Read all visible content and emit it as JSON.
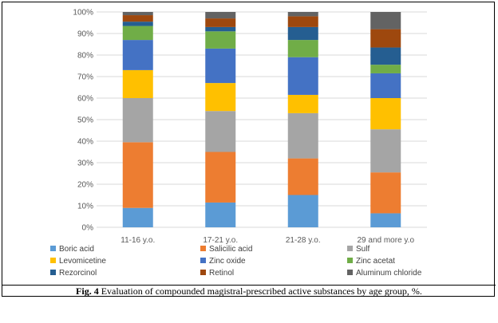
{
  "chart_data": {
    "type": "bar",
    "stacked": true,
    "categories": [
      "11-16 y.o.",
      "17-21 y.o.",
      "21-28 y.o.",
      "29 and more y.o"
    ],
    "ylim": [
      0,
      100
    ],
    "yticks": [
      "0%",
      "10%",
      "20%",
      "30%",
      "40%",
      "50%",
      "60%",
      "70%",
      "80%",
      "90%",
      "100%"
    ],
    "grid": true,
    "legend_position": "bottom",
    "series": [
      {
        "name": "Boric acid",
        "color": "#5B9BD5",
        "values": [
          9,
          11.5,
          15,
          6.5
        ]
      },
      {
        "name": "Salicilic acid",
        "color": "#ED7D31",
        "values": [
          30.5,
          23.5,
          17,
          19
        ]
      },
      {
        "name": "Sulf",
        "color": "#A5A5A5",
        "values": [
          20.5,
          19,
          21,
          20
        ]
      },
      {
        "name": "Levomicetine",
        "color": "#FFC000",
        "values": [
          13,
          13,
          8.5,
          14.5
        ]
      },
      {
        "name": "Zinc oxide",
        "color": "#4472C4",
        "values": [
          14,
          16,
          17.5,
          11.5
        ]
      },
      {
        "name": "Zinc acetat",
        "color": "#70AD47",
        "values": [
          6.5,
          8,
          8,
          4
        ]
      },
      {
        "name": "Rezorcinol",
        "color": "#255E91",
        "values": [
          2,
          2,
          6,
          8
        ]
      },
      {
        "name": "Retinol",
        "color": "#9E480E",
        "values": [
          3,
          4,
          5,
          8.5
        ]
      },
      {
        "name": "Aluminum chloride",
        "color": "#636363",
        "values": [
          1.5,
          3,
          2,
          8
        ]
      }
    ]
  },
  "caption": {
    "label": "Fig. 4",
    "text": " Evaluation of compounded magistral-prescribed active substances by age group, %."
  }
}
